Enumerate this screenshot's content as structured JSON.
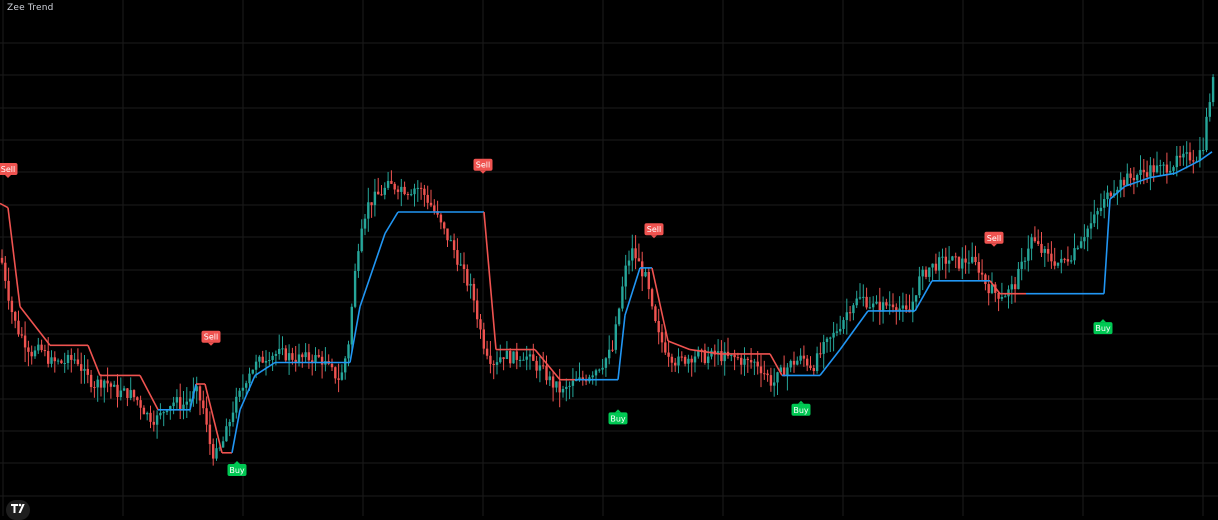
{
  "header": {
    "title": "Zee Trend"
  },
  "colors": {
    "background": "#000000",
    "grid": "#1b1b1b",
    "bull": "#26a69a",
    "bear": "#ef5350",
    "trend_up": "#2196f3",
    "trend_down": "#ef5350",
    "buy_label_bg": "#00c853",
    "sell_label_bg": "#ef5350",
    "label_text": "#ffffff"
  },
  "icons": {
    "logo": "tradingview-logo-icon"
  },
  "chart_data": {
    "type": "candlestick",
    "title": "Zee Trend",
    "xlabel": "",
    "ylabel": "",
    "ylim": [
      0,
      100
    ],
    "grid": true,
    "price_path": [
      [
        0,
        50
      ],
      [
        6,
        48
      ],
      [
        14,
        38
      ],
      [
        20,
        33
      ],
      [
        28,
        30
      ],
      [
        36,
        27
      ],
      [
        44,
        28
      ],
      [
        55,
        25
      ],
      [
        66,
        25
      ],
      [
        80,
        26
      ],
      [
        88,
        22
      ],
      [
        98,
        20
      ],
      [
        108,
        21
      ],
      [
        120,
        18
      ],
      [
        132,
        18
      ],
      [
        142,
        16
      ],
      [
        150,
        13
      ],
      [
        156,
        12
      ],
      [
        162,
        12
      ],
      [
        170,
        15
      ],
      [
        178,
        16
      ],
      [
        186,
        15
      ],
      [
        194,
        17
      ],
      [
        200,
        18
      ],
      [
        206,
        15
      ],
      [
        212,
        7
      ],
      [
        218,
        3
      ],
      [
        224,
        5
      ],
      [
        230,
        9
      ],
      [
        236,
        14
      ],
      [
        244,
        18
      ],
      [
        252,
        23
      ],
      [
        262,
        25
      ],
      [
        272,
        27
      ],
      [
        285,
        27
      ],
      [
        300,
        26
      ],
      [
        315,
        26
      ],
      [
        324,
        26
      ],
      [
        334,
        23
      ],
      [
        344,
        21
      ],
      [
        352,
        30
      ],
      [
        358,
        45
      ],
      [
        364,
        57
      ],
      [
        372,
        62
      ],
      [
        382,
        64
      ],
      [
        392,
        66
      ],
      [
        402,
        66
      ],
      [
        412,
        65
      ],
      [
        420,
        66
      ],
      [
        428,
        64
      ],
      [
        436,
        61
      ],
      [
        446,
        56
      ],
      [
        456,
        52
      ],
      [
        466,
        46
      ],
      [
        476,
        41
      ],
      [
        486,
        30
      ],
      [
        496,
        25
      ],
      [
        506,
        27
      ],
      [
        516,
        26
      ],
      [
        526,
        27
      ],
      [
        536,
        25
      ],
      [
        546,
        23
      ],
      [
        556,
        20
      ],
      [
        566,
        18
      ],
      [
        576,
        20
      ],
      [
        586,
        21
      ],
      [
        596,
        23
      ],
      [
        606,
        25
      ],
      [
        616,
        28
      ],
      [
        624,
        40
      ],
      [
        630,
        48
      ],
      [
        636,
        51
      ],
      [
        642,
        48
      ],
      [
        650,
        44
      ],
      [
        656,
        36
      ],
      [
        662,
        31
      ],
      [
        670,
        28
      ],
      [
        680,
        25
      ],
      [
        690,
        26
      ],
      [
        700,
        27
      ],
      [
        710,
        26
      ],
      [
        720,
        27
      ],
      [
        730,
        26
      ],
      [
        740,
        26
      ],
      [
        750,
        25
      ],
      [
        760,
        25
      ],
      [
        770,
        22
      ],
      [
        776,
        20
      ],
      [
        786,
        23
      ],
      [
        796,
        25
      ],
      [
        806,
        26
      ],
      [
        816,
        24
      ],
      [
        826,
        28
      ],
      [
        836,
        31
      ],
      [
        846,
        35
      ],
      [
        856,
        39
      ],
      [
        866,
        40
      ],
      [
        876,
        38
      ],
      [
        886,
        38
      ],
      [
        896,
        39
      ],
      [
        906,
        37
      ],
      [
        912,
        36
      ],
      [
        922,
        44
      ],
      [
        932,
        47
      ],
      [
        942,
        48
      ],
      [
        952,
        49
      ],
      [
        962,
        48
      ],
      [
        972,
        49
      ],
      [
        982,
        47
      ],
      [
        990,
        43
      ],
      [
        1000,
        41
      ],
      [
        1010,
        41
      ],
      [
        1018,
        43
      ],
      [
        1026,
        48
      ],
      [
        1034,
        54
      ],
      [
        1044,
        51
      ],
      [
        1054,
        49
      ],
      [
        1064,
        48
      ],
      [
        1074,
        50
      ],
      [
        1084,
        54
      ],
      [
        1094,
        57
      ],
      [
        1104,
        61
      ],
      [
        1114,
        65
      ],
      [
        1124,
        67
      ],
      [
        1134,
        68
      ],
      [
        1144,
        69
      ],
      [
        1154,
        70
      ],
      [
        1164,
        70
      ],
      [
        1174,
        71
      ],
      [
        1184,
        72
      ],
      [
        1194,
        73
      ],
      [
        1200,
        73
      ],
      [
        1206,
        75
      ],
      [
        1212,
        85
      ],
      [
        1218,
        92
      ]
    ],
    "trend_line": [
      {
        "x": 0,
        "y": 62,
        "dir": "down"
      },
      {
        "x": 8,
        "y": 61,
        "dir": "down"
      },
      {
        "x": 20,
        "y": 38,
        "dir": "down"
      },
      {
        "x": 40,
        "y": 32,
        "dir": "down"
      },
      {
        "x": 50,
        "y": 29,
        "dir": "down"
      },
      {
        "x": 66,
        "y": 29,
        "dir": "down"
      },
      {
        "x": 88,
        "y": 29,
        "dir": "down"
      },
      {
        "x": 100,
        "y": 22,
        "dir": "down"
      },
      {
        "x": 140,
        "y": 22,
        "dir": "down"
      },
      {
        "x": 158,
        "y": 14,
        "dir": "down"
      },
      {
        "x": 158,
        "y": 14,
        "dir": "up"
      },
      {
        "x": 190,
        "y": 14,
        "dir": "up"
      },
      {
        "x": 196,
        "y": 20,
        "dir": "up"
      },
      {
        "x": 196,
        "y": 20,
        "dir": "down"
      },
      {
        "x": 205,
        "y": 20,
        "dir": "down"
      },
      {
        "x": 222,
        "y": 4,
        "dir": "down"
      },
      {
        "x": 232,
        "y": 4,
        "dir": "down"
      },
      {
        "x": 232,
        "y": 4,
        "dir": "up"
      },
      {
        "x": 240,
        "y": 14,
        "dir": "up"
      },
      {
        "x": 255,
        "y": 22,
        "dir": "up"
      },
      {
        "x": 275,
        "y": 25,
        "dir": "up"
      },
      {
        "x": 350,
        "y": 25,
        "dir": "up"
      },
      {
        "x": 360,
        "y": 38,
        "dir": "up"
      },
      {
        "x": 385,
        "y": 55,
        "dir": "up"
      },
      {
        "x": 398,
        "y": 60,
        "dir": "up"
      },
      {
        "x": 484,
        "y": 60,
        "dir": "up"
      },
      {
        "x": 484,
        "y": 60,
        "dir": "down"
      },
      {
        "x": 496,
        "y": 28,
        "dir": "down"
      },
      {
        "x": 535,
        "y": 28,
        "dir": "down"
      },
      {
        "x": 560,
        "y": 21,
        "dir": "down"
      },
      {
        "x": 575,
        "y": 21,
        "dir": "down"
      },
      {
        "x": 575,
        "y": 21,
        "dir": "up"
      },
      {
        "x": 618,
        "y": 21,
        "dir": "up"
      },
      {
        "x": 625,
        "y": 36,
        "dir": "up"
      },
      {
        "x": 640,
        "y": 47,
        "dir": "up"
      },
      {
        "x": 652,
        "y": 47,
        "dir": "up"
      },
      {
        "x": 652,
        "y": 47,
        "dir": "down"
      },
      {
        "x": 668,
        "y": 30,
        "dir": "down"
      },
      {
        "x": 690,
        "y": 28,
        "dir": "down"
      },
      {
        "x": 720,
        "y": 27,
        "dir": "down"
      },
      {
        "x": 770,
        "y": 27,
        "dir": "down"
      },
      {
        "x": 782,
        "y": 22,
        "dir": "down"
      },
      {
        "x": 782,
        "y": 22,
        "dir": "up"
      },
      {
        "x": 820,
        "y": 22,
        "dir": "up"
      },
      {
        "x": 840,
        "y": 28,
        "dir": "up"
      },
      {
        "x": 868,
        "y": 37,
        "dir": "up"
      },
      {
        "x": 915,
        "y": 37,
        "dir": "up"
      },
      {
        "x": 932,
        "y": 44,
        "dir": "up"
      },
      {
        "x": 990,
        "y": 44,
        "dir": "up"
      },
      {
        "x": 990,
        "y": 44,
        "dir": "down"
      },
      {
        "x": 1000,
        "y": 41,
        "dir": "down"
      },
      {
        "x": 1026,
        "y": 41,
        "dir": "down"
      },
      {
        "x": 1026,
        "y": 41,
        "dir": "up"
      },
      {
        "x": 1104,
        "y": 41,
        "dir": "up"
      },
      {
        "x": 1110,
        "y": 63,
        "dir": "up"
      },
      {
        "x": 1125,
        "y": 66,
        "dir": "up"
      },
      {
        "x": 1150,
        "y": 68,
        "dir": "up"
      },
      {
        "x": 1175,
        "y": 69,
        "dir": "up"
      },
      {
        "x": 1200,
        "y": 72,
        "dir": "up"
      },
      {
        "x": 1212,
        "y": 74,
        "dir": "up"
      }
    ],
    "signals": [
      {
        "type": "sell",
        "label": "Sell",
        "x": 8,
        "y": 70
      },
      {
        "type": "sell",
        "label": "Sell",
        "x": 211,
        "y": 31
      },
      {
        "type": "buy",
        "label": "Buy",
        "x": 237,
        "y": 0
      },
      {
        "type": "sell",
        "label": "Sell",
        "x": 483,
        "y": 71
      },
      {
        "type": "buy",
        "label": "Buy",
        "x": 618,
        "y": 12
      },
      {
        "type": "sell",
        "label": "Sell",
        "x": 654,
        "y": 56
      },
      {
        "type": "buy",
        "label": "Buy",
        "x": 801,
        "y": 14
      },
      {
        "type": "sell",
        "label": "Sell",
        "x": 994,
        "y": 54
      },
      {
        "type": "buy",
        "label": "Buy",
        "x": 1103,
        "y": 33
      }
    ]
  }
}
